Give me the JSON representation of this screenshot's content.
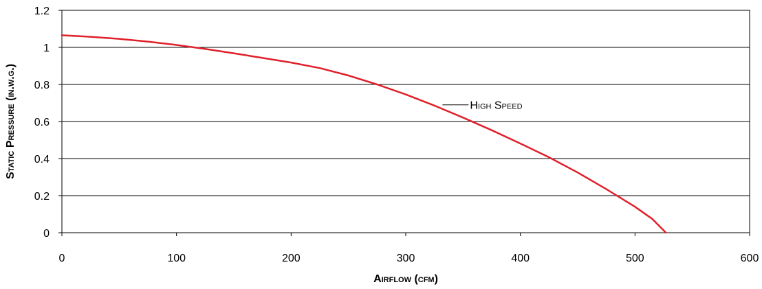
{
  "chart_data": {
    "type": "line",
    "title": "",
    "xlabel": "Airflow (cfm)",
    "ylabel": "Static Pressure (in.w.g.)",
    "xlim": [
      0,
      600
    ],
    "ylim": [
      0,
      1.2
    ],
    "x_ticks": [
      "0",
      "100",
      "200",
      "300",
      "400",
      "500",
      "600"
    ],
    "y_ticks": [
      "0",
      "0.2",
      "0.4",
      "0.6",
      "0.8",
      "1",
      "1.2"
    ],
    "grid": "horizontal",
    "series": [
      {
        "name": "High Speed",
        "color": "#e0202a",
        "x": [
          0,
          25,
          50,
          75,
          100,
          125,
          150,
          175,
          200,
          225,
          250,
          275,
          300,
          325,
          350,
          375,
          400,
          425,
          450,
          475,
          500,
          515,
          527
        ],
        "y": [
          1.065,
          1.057,
          1.046,
          1.031,
          1.013,
          0.992,
          0.968,
          0.943,
          0.918,
          0.888,
          0.848,
          0.8,
          0.746,
          0.686,
          0.621,
          0.553,
          0.481,
          0.407,
          0.325,
          0.235,
          0.14,
          0.075,
          0.0
        ]
      }
    ],
    "annotations": [
      {
        "text": "High Speed",
        "x": 332,
        "y": 0.69
      }
    ]
  }
}
